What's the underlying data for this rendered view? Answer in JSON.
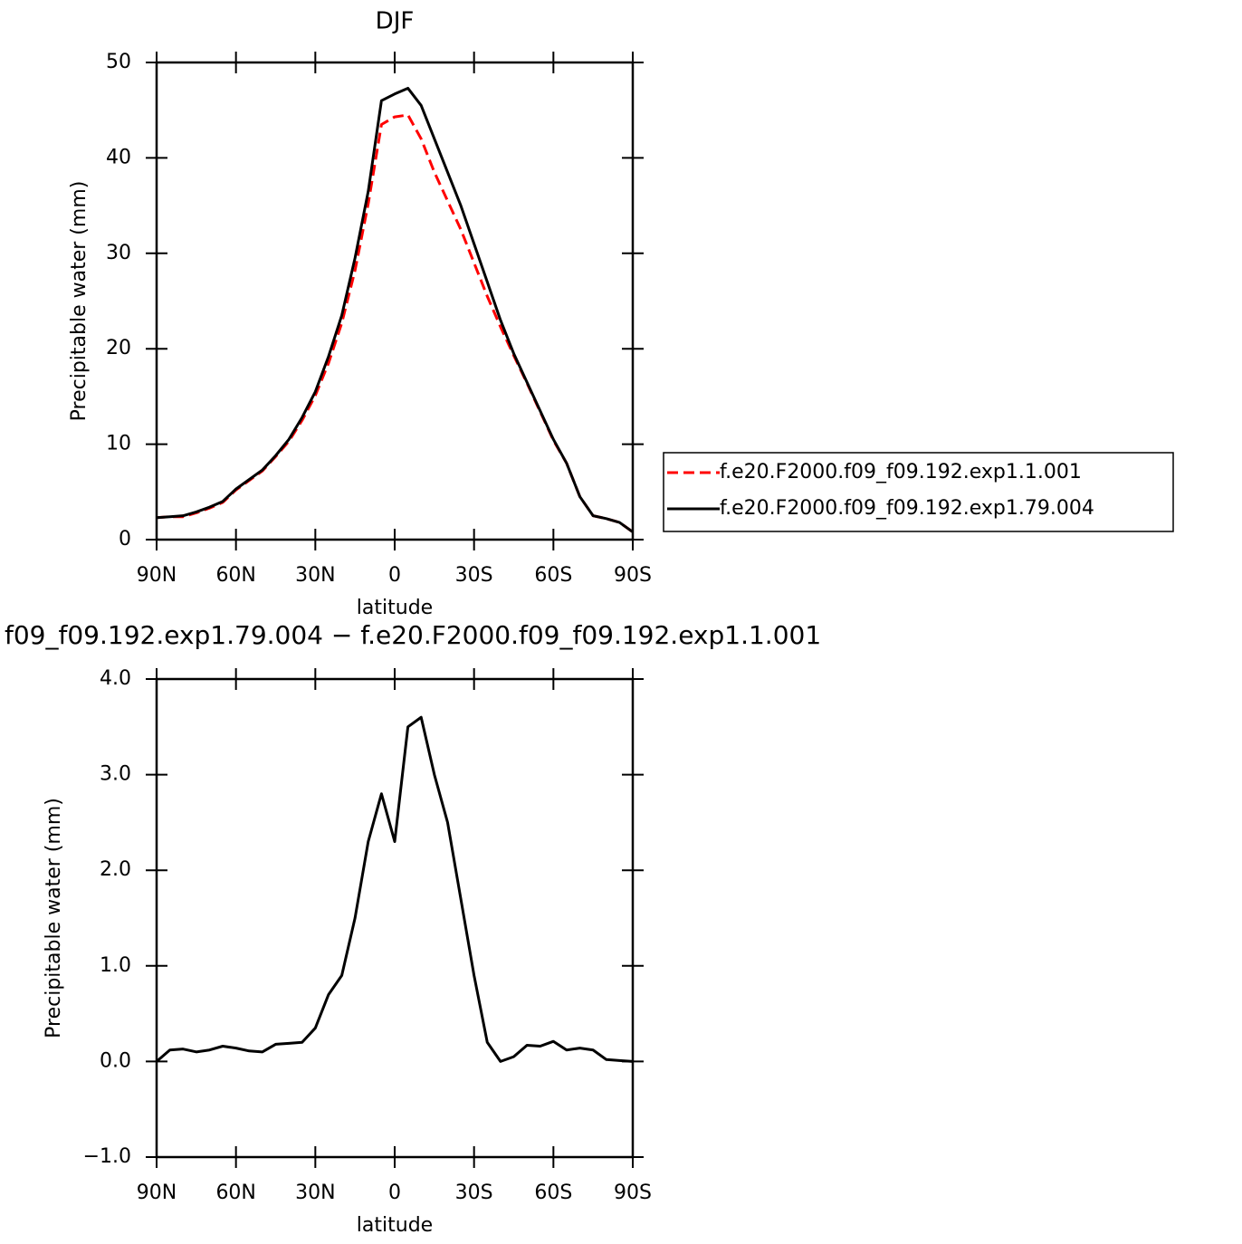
{
  "chart_data": [
    {
      "type": "line",
      "title": "DJF",
      "xlabel": "latitude",
      "ylabel": "Precipitable water (mm)",
      "x": [
        90,
        85,
        80,
        75,
        70,
        65,
        60,
        55,
        50,
        45,
        40,
        35,
        30,
        25,
        20,
        15,
        10,
        5,
        0,
        -5,
        -10,
        -15,
        -20,
        -25,
        -30,
        -35,
        -40,
        -45,
        -50,
        -55,
        -60,
        -65,
        -70,
        -75,
        -80,
        -85,
        -90
      ],
      "xlim": [
        90,
        -90
      ],
      "xticks": [
        {
          "value": 90,
          "label": "90N"
        },
        {
          "value": 60,
          "label": "60N"
        },
        {
          "value": 30,
          "label": "30N"
        },
        0,
        {
          "value": -30,
          "label": "30S"
        },
        {
          "value": -60,
          "label": "60S"
        },
        {
          "value": -90,
          "label": "90S"
        }
      ],
      "ylim": [
        0,
        50
      ],
      "yticks": [
        0,
        10,
        20,
        30,
        40,
        50
      ],
      "legend": "right",
      "series": [
        {
          "name": "f.e20.F2000.f09_f09.192.exp1.1.001",
          "color": "#ff0000",
          "linestyle": "dashed",
          "values": [
            2.3,
            2.4,
            2.4,
            2.8,
            3.3,
            3.9,
            5.2,
            6.2,
            7.2,
            8.7,
            10.3,
            12.5,
            15.1,
            18.5,
            22.7,
            28.2,
            35.2,
            43.5,
            44.3,
            44.5,
            42.0,
            38.5,
            35.5,
            32.5,
            29.0,
            25.5,
            22.3,
            19.3,
            16.4,
            13.4,
            10.4,
            8.0,
            4.5,
            2.5,
            2.2,
            1.8,
            0.8
          ]
        },
        {
          "name": "f.e20.F2000.f09_f09.192.exp1.79.004",
          "color": "#000000",
          "linestyle": "solid",
          "values": [
            2.3,
            2.4,
            2.5,
            2.9,
            3.4,
            4.0,
            5.3,
            6.3,
            7.3,
            8.8,
            10.5,
            12.8,
            15.5,
            19.2,
            23.5,
            29.5,
            36.5,
            46.0,
            46.7,
            47.3,
            45.5,
            42.0,
            38.5,
            35.0,
            31.0,
            27.0,
            23.0,
            19.5,
            16.5,
            13.5,
            10.5,
            8.0,
            4.5,
            2.5,
            2.2,
            1.8,
            0.8
          ]
        }
      ]
    },
    {
      "type": "line",
      "title": "f09_f09.192.exp1.79.004 − f.e20.F2000.f09_f09.192.exp1.1.001",
      "xlabel": "latitude",
      "ylabel": "Precipitable water (mm)",
      "x": [
        90,
        85,
        80,
        75,
        70,
        65,
        60,
        55,
        50,
        45,
        40,
        35,
        30,
        25,
        20,
        15,
        10,
        5,
        0,
        -5,
        -10,
        -15,
        -20,
        -25,
        -30,
        -35,
        -40,
        -45,
        -50,
        -55,
        -60,
        -65,
        -70,
        -75,
        -80,
        -85,
        -90
      ],
      "xlim": [
        90,
        -90
      ],
      "xticks": [
        {
          "value": 90,
          "label": "90N"
        },
        {
          "value": 60,
          "label": "60N"
        },
        {
          "value": 30,
          "label": "30N"
        },
        0,
        {
          "value": -30,
          "label": "30S"
        },
        {
          "value": -60,
          "label": "60S"
        },
        {
          "value": -90,
          "label": "90S"
        }
      ],
      "ylim": [
        -1,
        4
      ],
      "yticks": [
        {
          "value": -1,
          "label": "−1.0"
        },
        {
          "value": 0,
          "label": "0.0"
        },
        {
          "value": 1,
          "label": "1.0"
        },
        {
          "value": 2,
          "label": "2.0"
        },
        {
          "value": 3,
          "label": "3.0"
        },
        {
          "value": 4,
          "label": "4.0"
        }
      ],
      "series": [
        {
          "color": "#000000",
          "linestyle": "solid",
          "values": [
            0.0,
            0.12,
            0.13,
            0.1,
            0.12,
            0.16,
            0.14,
            0.11,
            0.1,
            0.18,
            0.19,
            0.2,
            0.35,
            0.7,
            0.9,
            1.5,
            2.3,
            2.8,
            2.3,
            3.5,
            3.6,
            3.0,
            2.5,
            1.7,
            0.9,
            0.2,
            0.0,
            0.05,
            0.17,
            0.16,
            0.21,
            0.12,
            0.14,
            0.12,
            0.02,
            0.01,
            0.0
          ]
        }
      ]
    }
  ]
}
